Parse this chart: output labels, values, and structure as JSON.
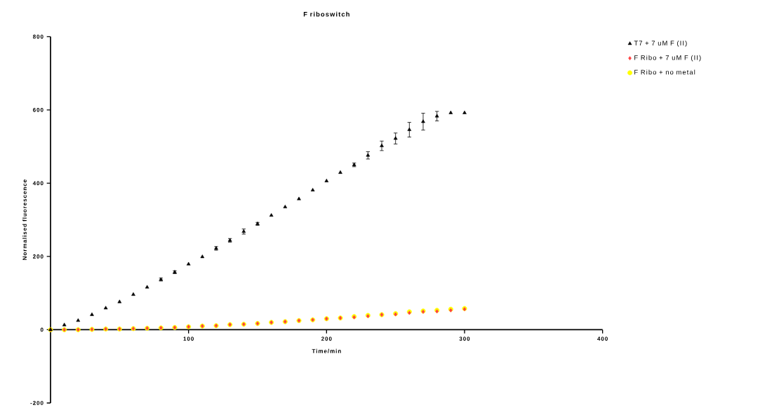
{
  "chart_data": {
    "type": "scatter",
    "title": "F riboswitch",
    "xlabel": "Time/min",
    "ylabel": "Normalised fluorescence",
    "x": [
      0,
      10,
      20,
      30,
      40,
      50,
      60,
      70,
      80,
      90,
      100,
      110,
      120,
      130,
      140,
      150,
      160,
      170,
      180,
      190,
      200,
      210,
      220,
      230,
      240,
      250,
      260,
      270,
      280,
      290,
      300
    ],
    "series": [
      {
        "name": "T7 + 7 uM F (II)",
        "color": "#000000",
        "marker": "triangle",
        "values": [
          0,
          13,
          25,
          41,
          59,
          76,
          96,
          116,
          137,
          157,
          179,
          199,
          222,
          244,
          268,
          289,
          312,
          335,
          357,
          381,
          406,
          429,
          450,
          476,
          502,
          522,
          546,
          568,
          583,
          592,
          592
        ],
        "errors": [
          null,
          null,
          null,
          null,
          null,
          null,
          null,
          null,
          4,
          4,
          null,
          null,
          5,
          5,
          7,
          4,
          null,
          null,
          null,
          null,
          null,
          null,
          5,
          10,
          13,
          15,
          20,
          23,
          13,
          null,
          null
        ]
      },
      {
        "name": "F Ribo + 7 uM F (II)",
        "color": "#ff4040",
        "marker": "diamond",
        "values": [
          0,
          0,
          0,
          1,
          2,
          2,
          3,
          4,
          5,
          6,
          8,
          10,
          11,
          14,
          15,
          17,
          20,
          22,
          25,
          27,
          30,
          32,
          34,
          37,
          41,
          42,
          46,
          49,
          50,
          53,
          56
        ]
      },
      {
        "name": "F Ribo + no metal",
        "color": "#ffff00",
        "marker": "circle",
        "values": [
          0,
          0,
          0,
          1,
          2,
          2,
          3,
          4,
          5,
          6,
          8,
          10,
          11,
          14,
          15,
          17,
          20,
          22,
          25,
          27,
          30,
          32,
          36,
          39,
          41,
          44,
          49,
          51,
          53,
          56,
          58
        ]
      }
    ],
    "xlim": [
      0,
      400
    ],
    "ylim": [
      -200,
      800
    ],
    "xticks": [
      100,
      200,
      300,
      400
    ],
    "yticks": [
      -200,
      0,
      200,
      400,
      600,
      800
    ],
    "grid": false,
    "legend": "top right"
  }
}
